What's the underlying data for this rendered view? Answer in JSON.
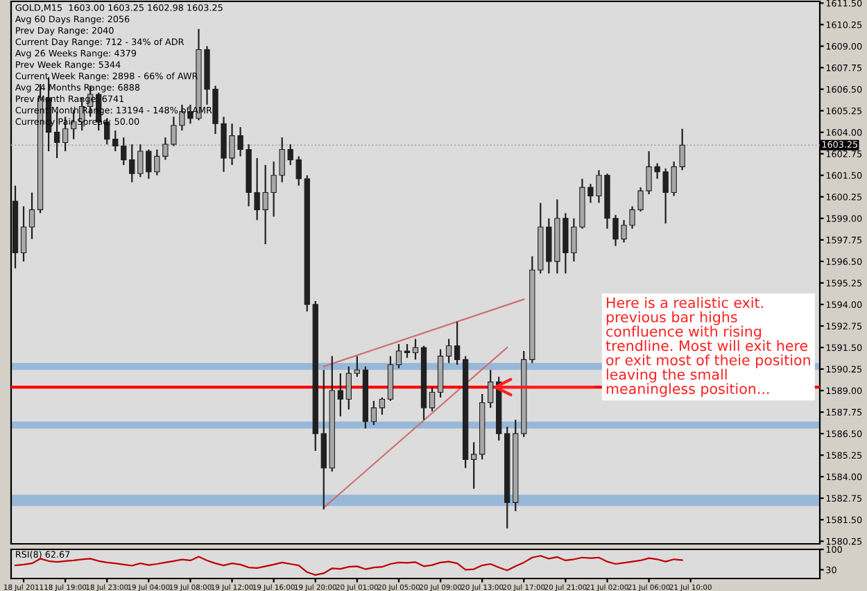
{
  "chart_data": [
    {
      "type": "candlestick",
      "title": "GOLD,M15  1603.00 1603.25 1602.98 1603.25",
      "color": "#202020",
      "tick_labels": "y",
      "grid": false,
      "legend": false,
      "annotations": [
        "Avg 60 Days Range: 2056",
        "Prev Day Range: 2040",
        "Current Day Range: 712 - 34% of ADR",
        "Avg 26 Weeks Range: 4379",
        "Prev Week Range: 5344",
        "Current Week Range: 2898 - 66% of AWR",
        "Avg 24 Months Range: 6888",
        "Prev Month Range: 6741",
        "Current Month Range: 13194 - 148% of AMR",
        "Currency Pair Spread: 50.00",
        {
          "text": "Here is a realistic exit.\nprevious bar highs\nconfluence with rising\ntrendline. Most will exit here\nor exit most of theie position\nleaving the small\nmeaningless position...",
          "y": 1589.2
        }
      ],
      "categories": [
        null,
        null,
        null,
        null,
        null,
        null,
        null,
        null,
        null,
        null,
        null,
        null,
        null,
        null,
        null,
        null,
        null,
        null,
        null,
        null,
        null,
        null,
        null,
        null,
        null,
        null,
        null,
        null,
        null,
        null,
        null,
        null,
        null,
        null,
        null,
        null,
        null,
        null,
        null,
        null,
        null,
        null,
        null,
        null,
        null,
        null,
        null,
        null,
        null,
        null,
        null,
        null,
        null,
        null,
        null,
        null,
        null,
        null,
        null,
        null,
        null,
        null,
        null,
        null,
        null,
        null,
        null,
        null,
        null,
        null,
        null,
        null,
        null,
        null,
        null,
        null,
        null,
        null,
        null,
        null,
        null,
        null,
        null,
        null,
        null,
        null,
        null,
        null,
        null,
        null,
        null,
        null,
        null,
        null,
        null,
        null,
        null
      ],
      "ohlc": [
        [
          1600.0,
          1600.9,
          1596.1,
          1597.0
        ],
        [
          1597.0,
          1599.7,
          1596.5,
          1598.5
        ],
        [
          1598.5,
          1600.5,
          1597.8,
          1599.5
        ],
        [
          1599.5,
          1606.8,
          1599.3,
          1606.0
        ],
        [
          1606.0,
          1607.2,
          1602.9,
          1604.0
        ],
        [
          1604.0,
          1605.2,
          1602.5,
          1603.4
        ],
        [
          1603.4,
          1604.9,
          1602.9,
          1604.2
        ],
        [
          1604.2,
          1605.3,
          1603.6,
          1604.6
        ],
        [
          1604.6,
          1606.0,
          1604.1,
          1605.5
        ],
        [
          1605.5,
          1606.7,
          1604.9,
          1606.2
        ],
        [
          1606.2,
          1606.3,
          1604.1,
          1604.6
        ],
        [
          1604.6,
          1604.8,
          1603.3,
          1603.6
        ],
        [
          1603.6,
          1604.1,
          1602.9,
          1603.2
        ],
        [
          1603.2,
          1603.7,
          1602.1,
          1602.4
        ],
        [
          1602.4,
          1603.3,
          1601.1,
          1601.6
        ],
        [
          1601.6,
          1603.3,
          1601.4,
          1602.9
        ],
        [
          1602.9,
          1603.0,
          1601.3,
          1601.7
        ],
        [
          1601.7,
          1603.0,
          1601.5,
          1602.6
        ],
        [
          1602.6,
          1603.7,
          1602.4,
          1603.3
        ],
        [
          1603.3,
          1604.9,
          1603.2,
          1604.4
        ],
        [
          1604.4,
          1605.6,
          1604.1,
          1605.2
        ],
        [
          1605.2,
          1605.6,
          1604.5,
          1604.8
        ],
        [
          1604.8,
          1610.0,
          1604.7,
          1608.8
        ],
        [
          1608.8,
          1609.0,
          1605.6,
          1606.5
        ],
        [
          1606.5,
          1606.7,
          1603.9,
          1604.5
        ],
        [
          1604.5,
          1604.9,
          1601.7,
          1602.5
        ],
        [
          1602.5,
          1604.5,
          1602.1,
          1603.8
        ],
        [
          1603.8,
          1604.3,
          1602.6,
          1603.0
        ],
        [
          1603.0,
          1603.3,
          1599.7,
          1600.5
        ],
        [
          1600.5,
          1602.5,
          1598.9,
          1599.5
        ],
        [
          1599.5,
          1602.1,
          1597.5,
          1600.5
        ],
        [
          1600.5,
          1602.3,
          1599.1,
          1601.5
        ],
        [
          1601.5,
          1603.7,
          1601.1,
          1603.0
        ],
        [
          1603.0,
          1603.3,
          1602.1,
          1602.4
        ],
        [
          1602.4,
          1602.6,
          1600.9,
          1601.3
        ],
        [
          1601.3,
          1601.5,
          1593.6,
          1594.0
        ],
        [
          1594.0,
          1594.2,
          1585.5,
          1586.5
        ],
        [
          1586.5,
          1590.2,
          1582.1,
          1584.5
        ],
        [
          1584.5,
          1591.0,
          1584.3,
          1589.0
        ],
        [
          1589.0,
          1590.0,
          1587.5,
          1588.5
        ],
        [
          1588.5,
          1590.4,
          1587.9,
          1590.0
        ],
        [
          1590.0,
          1591.0,
          1589.8,
          1590.2
        ],
        [
          1590.2,
          1590.4,
          1586.8,
          1587.2
        ],
        [
          1587.2,
          1588.4,
          1587.0,
          1588.0
        ],
        [
          1588.0,
          1588.6,
          1587.6,
          1588.5
        ],
        [
          1588.5,
          1591.0,
          1588.4,
          1590.5
        ],
        [
          1590.5,
          1591.7,
          1590.3,
          1591.3
        ],
        [
          1591.3,
          1591.7,
          1590.9,
          1591.2
        ],
        [
          1591.2,
          1592.0,
          1590.8,
          1591.5
        ],
        [
          1591.5,
          1591.6,
          1587.3,
          1588.0
        ],
        [
          1588.0,
          1589.2,
          1587.8,
          1588.9
        ],
        [
          1588.9,
          1591.4,
          1588.6,
          1591.0
        ],
        [
          1591.0,
          1592.0,
          1590.6,
          1591.6
        ],
        [
          1591.6,
          1593.0,
          1590.5,
          1590.8
        ],
        [
          1590.8,
          1591.0,
          1584.5,
          1585.0
        ],
        [
          1585.0,
          1586.0,
          1583.3,
          1585.3
        ],
        [
          1585.3,
          1588.8,
          1585.0,
          1588.3
        ],
        [
          1588.3,
          1590.2,
          1588.0,
          1589.5
        ],
        [
          1589.5,
          1589.8,
          1586.1,
          1586.5
        ],
        [
          1586.5,
          1586.9,
          1581.0,
          1582.5
        ],
        [
          1582.5,
          1587.3,
          1582.0,
          1586.5
        ],
        [
          1586.5,
          1591.3,
          1586.3,
          1590.8
        ],
        [
          1590.8,
          1596.8,
          1590.6,
          1596.0
        ],
        [
          1596.0,
          1599.9,
          1595.8,
          1598.5
        ],
        [
          1598.5,
          1599.0,
          1595.8,
          1596.5
        ],
        [
          1596.5,
          1600.1,
          1595.8,
          1599.0
        ],
        [
          1599.0,
          1599.3,
          1595.8,
          1597.0
        ],
        [
          1597.0,
          1599.0,
          1596.5,
          1598.5
        ],
        [
          1598.5,
          1601.3,
          1598.4,
          1600.8
        ],
        [
          1600.8,
          1601.0,
          1599.9,
          1600.3
        ],
        [
          1600.3,
          1601.8,
          1599.9,
          1601.5
        ],
        [
          1601.5,
          1601.6,
          1598.4,
          1599.0
        ],
        [
          1599.0,
          1599.2,
          1597.4,
          1597.8
        ],
        [
          1597.8,
          1598.9,
          1597.6,
          1598.6
        ],
        [
          1598.6,
          1599.7,
          1598.4,
          1599.5
        ],
        [
          1599.5,
          1600.8,
          1599.4,
          1600.6
        ],
        [
          1600.6,
          1602.9,
          1600.4,
          1602.0
        ],
        [
          1602.0,
          1602.2,
          1601.3,
          1601.7
        ],
        [
          1601.7,
          1601.9,
          1598.7,
          1600.5
        ],
        [
          1600.5,
          1602.3,
          1600.3,
          1602.0
        ],
        [
          1602.0,
          1604.2,
          1601.8,
          1603.25
        ],
        null,
        null,
        null,
        null,
        null,
        null,
        null,
        null,
        null,
        null,
        null,
        null,
        null,
        null,
        null,
        null
      ],
      "series": [
        {
          "type": "line",
          "values": [
            null,
            null,
            null,
            null,
            null,
            null,
            null,
            null,
            null,
            null,
            null,
            null,
            null,
            null,
            null,
            null,
            null,
            null,
            null,
            null,
            null,
            null,
            null,
            null,
            null,
            null,
            null,
            null,
            null,
            null,
            null,
            null,
            null,
            null,
            null,
            null,
            null,
            1590.4,
            null,
            null,
            null,
            null,
            null,
            null,
            null,
            null,
            null,
            null,
            null,
            null,
            null,
            null,
            null,
            null,
            null,
            null,
            null,
            null,
            null,
            null,
            null,
            1594.3,
            null,
            null,
            null,
            null,
            null,
            null,
            null,
            null,
            null,
            null,
            null,
            null,
            null,
            null,
            null,
            null,
            null,
            null,
            null,
            null,
            null,
            null,
            null,
            null,
            null,
            null,
            null,
            null,
            null,
            null,
            null,
            null,
            null,
            null,
            null
          ],
          "color": "#d07070"
        },
        {
          "type": "line",
          "values": [
            null,
            null,
            null,
            null,
            null,
            null,
            null,
            null,
            null,
            null,
            null,
            null,
            null,
            null,
            null,
            null,
            null,
            null,
            null,
            null,
            null,
            null,
            null,
            null,
            null,
            null,
            null,
            null,
            null,
            null,
            null,
            null,
            null,
            null,
            null,
            null,
            null,
            1582.2,
            null,
            null,
            null,
            null,
            null,
            null,
            null,
            null,
            null,
            null,
            null,
            null,
            null,
            null,
            null,
            null,
            null,
            null,
            null,
            null,
            null,
            1591.5,
            null,
            null,
            null,
            null,
            null,
            null,
            null,
            null,
            null,
            null,
            null,
            null,
            null,
            null,
            null,
            null,
            null,
            null,
            null,
            null,
            null,
            null,
            null,
            null,
            null,
            null,
            null,
            null,
            null,
            null,
            null,
            null,
            null,
            null,
            null,
            null,
            null
          ],
          "color": "#d07070"
        }
      ],
      "bands": [
        {
          "axis": "y",
          "from": 1590.2,
          "to": 1590.6,
          "color": "#8fb4d8"
        },
        {
          "axis": "y",
          "from": 1586.8,
          "to": 1587.2,
          "color": "#8fb4d8"
        },
        {
          "axis": "y",
          "from": 1582.3,
          "to": 1582.95,
          "color": "#8fb4d8"
        }
      ],
      "ref_lines": [
        {
          "axis": "y",
          "value": 1589.2,
          "color": "#ff0000",
          "line_style": "solid"
        },
        {
          "axis": "y",
          "value": 1603.25,
          "label": "1603.25",
          "color": "#a8a8a8",
          "line_style": "dotted"
        }
      ],
      "ylim": [
        1580.1,
        1611.6
      ],
      "yticks": [
        {
          "value": 1580.25,
          "label": "1580.25"
        },
        {
          "value": 1581.5,
          "label": "1581.50"
        },
        {
          "value": 1582.75,
          "label": "1582.75"
        },
        {
          "value": 1584.0,
          "label": "1584.00"
        },
        {
          "value": 1585.25,
          "label": "1585.25"
        },
        {
          "value": 1586.5,
          "label": "1586.50"
        },
        {
          "value": 1587.75,
          "label": "1587.75"
        },
        {
          "value": 1589.0,
          "label": "1589.00"
        },
        {
          "value": 1590.25,
          "label": "1590.25"
        },
        {
          "value": 1591.5,
          "label": "1591.50"
        },
        {
          "value": 1592.75,
          "label": "1592.75"
        },
        {
          "value": 1594.0,
          "label": "1594.00"
        },
        {
          "value": 1595.25,
          "label": "1595.25"
        },
        {
          "value": 1596.5,
          "label": "1596.50"
        },
        {
          "value": 1597.75,
          "label": "1597.75"
        },
        {
          "value": 1599.0,
          "label": "1599.00"
        },
        {
          "value": 1600.25,
          "label": "1600.25"
        },
        {
          "value": 1601.5,
          "label": "1601.50"
        },
        {
          "value": 1602.75,
          "label": "1602.75"
        },
        {
          "value": 1604.0,
          "label": "1604.00"
        },
        {
          "value": 1605.25,
          "label": "1605.25"
        },
        {
          "value": 1606.5,
          "label": "1606.50"
        },
        {
          "value": 1607.75,
          "label": "1607.75"
        },
        {
          "value": 1609.0,
          "label": "1609.00"
        },
        {
          "value": 1610.25,
          "label": "1610.25"
        },
        {
          "value": 1611.5,
          "label": "1611.50"
        }
      ]
    },
    {
      "type": "line",
      "title": "RSI(8) 62.67",
      "grid": false,
      "legend": false,
      "categories": [
        null,
        "18 Jul 2011",
        null,
        null,
        null,
        null,
        "18 Jul 19:00",
        null,
        null,
        null,
        null,
        "18 Jul 23:00",
        null,
        null,
        null,
        null,
        "19 Jul 04:00",
        null,
        null,
        null,
        null,
        "19 Jul 08:00",
        null,
        null,
        null,
        null,
        "19 Jul 12:00",
        null,
        null,
        null,
        null,
        "19 Jul 16:00",
        null,
        null,
        null,
        null,
        "19 Jul 20:00",
        null,
        null,
        null,
        null,
        "20 Jul 01:00",
        null,
        null,
        null,
        null,
        "20 Jul 05:00",
        null,
        null,
        null,
        null,
        "20 Jul 09:00",
        null,
        null,
        null,
        null,
        "20 Jul 13:00",
        null,
        null,
        null,
        null,
        "20 Jul 17:00",
        null,
        null,
        null,
        null,
        "20 Jul 21:00",
        null,
        null,
        null,
        null,
        "21 Jul 02:00",
        null,
        null,
        null,
        null,
        "21 Jul 06:00",
        null,
        null,
        null,
        null,
        "21 Jul 10:00",
        null,
        null,
        null,
        null,
        null,
        null,
        null,
        null,
        null,
        null,
        null,
        null,
        null,
        null,
        null
      ],
      "series": [
        {
          "color": "#c00000",
          "values": [
            45,
            48,
            52,
            68,
            60,
            57,
            60,
            62,
            66,
            68,
            60,
            55,
            52,
            48,
            44,
            52,
            46,
            50,
            55,
            60,
            65,
            62,
            75,
            62,
            52,
            45,
            52,
            48,
            38,
            36,
            42,
            48,
            55,
            50,
            45,
            22,
            12,
            18,
            35,
            33,
            40,
            42,
            32,
            38,
            40,
            50,
            55,
            54,
            56,
            42,
            46,
            55,
            58,
            52,
            30,
            32,
            45,
            50,
            38,
            28,
            42,
            55,
            72,
            78,
            68,
            74,
            62,
            66,
            72,
            70,
            72,
            58,
            50,
            54,
            58,
            62,
            70,
            66,
            58,
            66,
            63,
            null,
            null,
            null,
            null,
            null,
            null,
            null,
            null,
            null,
            null,
            null,
            null,
            null,
            null,
            null,
            null
          ]
        }
      ],
      "ylim": [
        0,
        100
      ],
      "yticks": [
        100,
        30
      ]
    }
  ]
}
